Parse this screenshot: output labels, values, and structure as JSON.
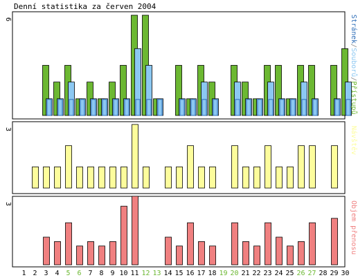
{
  "chart_data": {
    "type": "bar",
    "title": "Denní statistika za červen 2004",
    "days": [
      "1",
      "2",
      "3",
      "4",
      "5",
      "6",
      "7",
      "8",
      "9",
      "10",
      "11",
      "12",
      "13",
      "14",
      "15",
      "16",
      "17",
      "18",
      "19",
      "20",
      "21",
      "22",
      "23",
      "24",
      "25",
      "26",
      "27",
      "28",
      "29",
      "30"
    ],
    "weekend_days": [
      "5",
      "6",
      "12",
      "13",
      "19",
      "20",
      "26",
      "27"
    ],
    "panels": [
      {
        "id": "pristupy",
        "ymax": 6,
        "ytick": "6",
        "series": [
          {
            "name": "Přístupů",
            "color": "#6cb832",
            "values": [
              0,
              0,
              3,
              2,
              3,
              1,
              2,
              1,
              2,
              3,
              6,
              6,
              1,
              0,
              3,
              1,
              3,
              2,
              0,
              3,
              2,
              1,
              3,
              3,
              1,
              3,
              3,
              0,
              3,
              4
            ]
          },
          {
            "name": "Souborů",
            "color": "#8cc8f2",
            "values": [
              0,
              0,
              1,
              1,
              2,
              1,
              1,
              1,
              1,
              1,
              4,
              3,
              1,
              0,
              1,
              1,
              2,
              1,
              0,
              2,
              1,
              1,
              2,
              1,
              1,
              2,
              1,
              0,
              1,
              2
            ]
          },
          {
            "name": "Stránek",
            "color": "#2d6db8",
            "values": [
              0,
              0,
              1,
              1,
              1,
              1,
              1,
              1,
              1,
              1,
              1,
              1,
              1,
              0,
              1,
              1,
              1,
              1,
              0,
              1,
              1,
              1,
              1,
              1,
              1,
              1,
              1,
              0,
              1,
              1
            ]
          }
        ],
        "axis_label": "Stránek/Souborů/Přístupů"
      },
      {
        "id": "navstev",
        "ymax": 3,
        "ytick": "3",
        "series": [
          {
            "name": "Návštěv",
            "color": "#fdfd9c",
            "values": [
              0,
              1,
              1,
              1,
              2,
              1,
              1,
              1,
              1,
              1,
              3,
              1,
              0,
              1,
              1,
              2,
              1,
              1,
              0,
              2,
              1,
              1,
              2,
              1,
              1,
              2,
              2,
              0,
              2,
              0
            ]
          }
        ],
        "axis_label": "Návštěv"
      },
      {
        "id": "prenosy",
        "ymax": 3,
        "ytick": "3",
        "series": [
          {
            "name": "Objem přenosu",
            "color": "#f08080",
            "values": [
              0,
              0,
              1.25,
              1.05,
              1.9,
              0.85,
              1.05,
              0.85,
              1.05,
              2.65,
              3.1,
              0,
              0,
              1.25,
              0.85,
              1.9,
              1.05,
              0.85,
              0,
              1.9,
              1.05,
              0.85,
              1.9,
              1.25,
              0.85,
              1.05,
              1.9,
              0,
              2.1,
              0
            ]
          }
        ],
        "axis_label": "Objem přenosu"
      }
    ],
    "grid": false,
    "legend": "right-vertical",
    "weekday_color": "#000000",
    "weekend_color": "#6cb832"
  }
}
